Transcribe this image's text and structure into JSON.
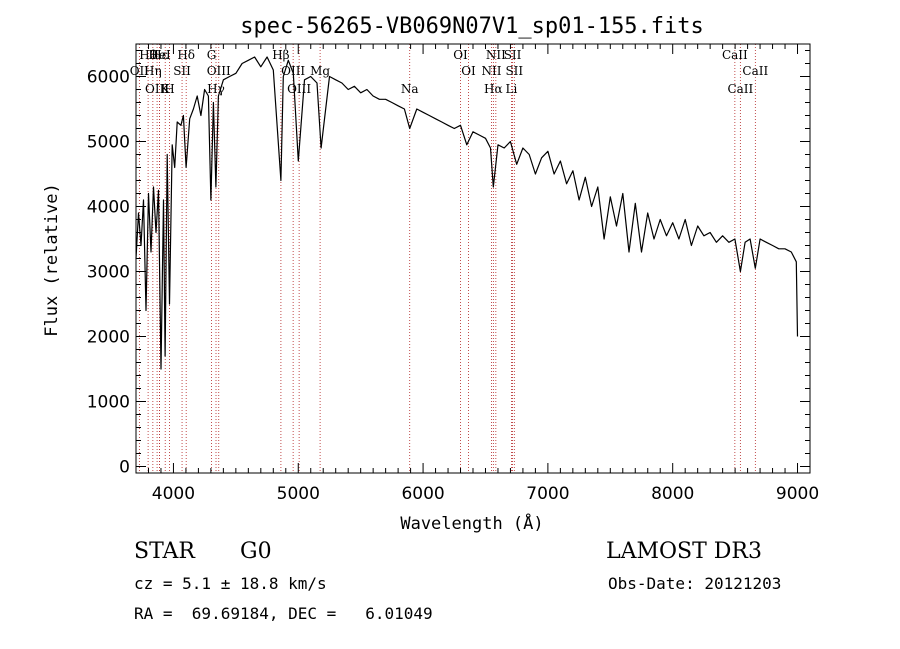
{
  "chart_data": {
    "type": "line",
    "title": "spec-56265-VB069N07V1_sp01-155.fits",
    "xlabel": "Wavelength (Å)",
    "ylabel": "Flux (relative)",
    "xlim": [
      3700,
      9100
    ],
    "ylim": [
      -100,
      6500
    ],
    "xticks": [
      4000,
      5000,
      6000,
      7000,
      8000,
      9000
    ],
    "yticks": [
      0,
      1000,
      2000,
      3000,
      4000,
      5000,
      6000
    ],
    "series": [
      {
        "name": "spectrum",
        "x": [
          3700,
          3720,
          3740,
          3760,
          3780,
          3800,
          3820,
          3840,
          3860,
          3880,
          3900,
          3920,
          3933,
          3950,
          3968,
          3990,
          4010,
          4030,
          4060,
          4080,
          4101,
          4130,
          4160,
          4190,
          4220,
          4250,
          4280,
          4300,
          4320,
          4340,
          4360,
          4400,
          4450,
          4500,
          4550,
          4600,
          4650,
          4700,
          4750,
          4800,
          4861,
          4880,
          4920,
          4960,
          5000,
          5050,
          5100,
          5150,
          5183,
          5250,
          5300,
          5350,
          5400,
          5450,
          5500,
          5550,
          5600,
          5650,
          5700,
          5750,
          5800,
          5850,
          5893,
          5950,
          6000,
          6050,
          6100,
          6150,
          6200,
          6250,
          6300,
          6350,
          6400,
          6450,
          6500,
          6540,
          6563,
          6600,
          6650,
          6700,
          6750,
          6800,
          6850,
          6900,
          6950,
          7000,
          7050,
          7100,
          7150,
          7200,
          7250,
          7300,
          7350,
          7400,
          7450,
          7500,
          7550,
          7600,
          7650,
          7700,
          7750,
          7800,
          7850,
          7900,
          7950,
          8000,
          8050,
          8100,
          8150,
          8200,
          8250,
          8300,
          8350,
          8400,
          8450,
          8498,
          8542,
          8580,
          8620,
          8662,
          8700,
          8750,
          8800,
          8850,
          8900,
          8950,
          8990,
          9000
        ],
        "y": [
          3200,
          3900,
          3400,
          4100,
          2400,
          4200,
          3300,
          4300,
          3600,
          4250,
          1500,
          4100,
          1700,
          4800,
          2500,
          4950,
          4600,
          5300,
          5250,
          5400,
          4600,
          5350,
          5500,
          5700,
          5400,
          5800,
          5700,
          4100,
          5600,
          4300,
          5700,
          5950,
          6000,
          6050,
          6200,
          6250,
          6300,
          6150,
          6300,
          6100,
          4400,
          6000,
          6250,
          6050,
          4700,
          5950,
          6000,
          5900,
          4900,
          6000,
          5950,
          5900,
          5800,
          5850,
          5750,
          5800,
          5700,
          5650,
          5650,
          5600,
          5550,
          5500,
          5200,
          5500,
          5450,
          5400,
          5350,
          5300,
          5250,
          5200,
          5250,
          4950,
          5150,
          5100,
          5050,
          4900,
          4300,
          4950,
          4900,
          5000,
          4650,
          4900,
          4800,
          4500,
          4750,
          4850,
          4500,
          4700,
          4350,
          4550,
          4100,
          4450,
          4000,
          4300,
          3500,
          4150,
          3700,
          4200,
          3300,
          4050,
          3300,
          3900,
          3500,
          3800,
          3550,
          3750,
          3500,
          3800,
          3400,
          3700,
          3550,
          3600,
          3450,
          3550,
          3450,
          3500,
          3000,
          3450,
          3500,
          3050,
          3500,
          3450,
          3400,
          3350,
          3350,
          3300,
          3150,
          2000
        ]
      }
    ],
    "line_ids": [
      {
        "name": "Hθ",
        "x": 3797
      },
      {
        "name": "OII",
        "x": 3727
      },
      {
        "name": "OIII",
        "x": 3869
      },
      {
        "name": "Hε",
        "x": 3889
      },
      {
        "name": "Hη",
        "x": 3835
      },
      {
        "name": "K",
        "x": 3934
      },
      {
        "name": "HeI",
        "x": 3889
      },
      {
        "name": "SII",
        "x": 4069
      },
      {
        "name": "H",
        "x": 3968
      },
      {
        "name": "Hδ",
        "x": 4102
      },
      {
        "name": "OIII",
        "x": 4363
      },
      {
        "name": "Hγ",
        "x": 4341
      },
      {
        "name": "G",
        "x": 4305
      },
      {
        "name": "OIII",
        "x": 4959
      },
      {
        "name": "OIII",
        "x": 5007
      },
      {
        "name": "Hβ",
        "x": 4861
      },
      {
        "name": "Mg",
        "x": 5175
      },
      {
        "name": "Na",
        "x": 5893
      },
      {
        "name": "OI",
        "x": 6300
      },
      {
        "name": "OI",
        "x": 6364
      },
      {
        "name": "Hα",
        "x": 6563
      },
      {
        "name": "SII",
        "x": 6717
      },
      {
        "name": "NII",
        "x": 6548
      },
      {
        "name": "Li",
        "x": 6708
      },
      {
        "name": "NII",
        "x": 6583
      },
      {
        "name": "SII",
        "x": 6731
      },
      {
        "name": "CaII",
        "x": 8542
      },
      {
        "name": "CaII",
        "x": 8498
      },
      {
        "name": "CaII",
        "x": 8662
      }
    ]
  },
  "info": {
    "object_class": "STAR",
    "subclass": "G0",
    "survey": "LAMOST DR3",
    "redshift": "cz = 5.1 ± 18.8 km/s",
    "obs_date": "Obs-Date: 20121203",
    "coords": "RA =  69.69184, DEC =   6.01049"
  },
  "colors": {
    "spectrum": "#000000",
    "line_marker": "#b22222",
    "background": "#ffffff"
  }
}
